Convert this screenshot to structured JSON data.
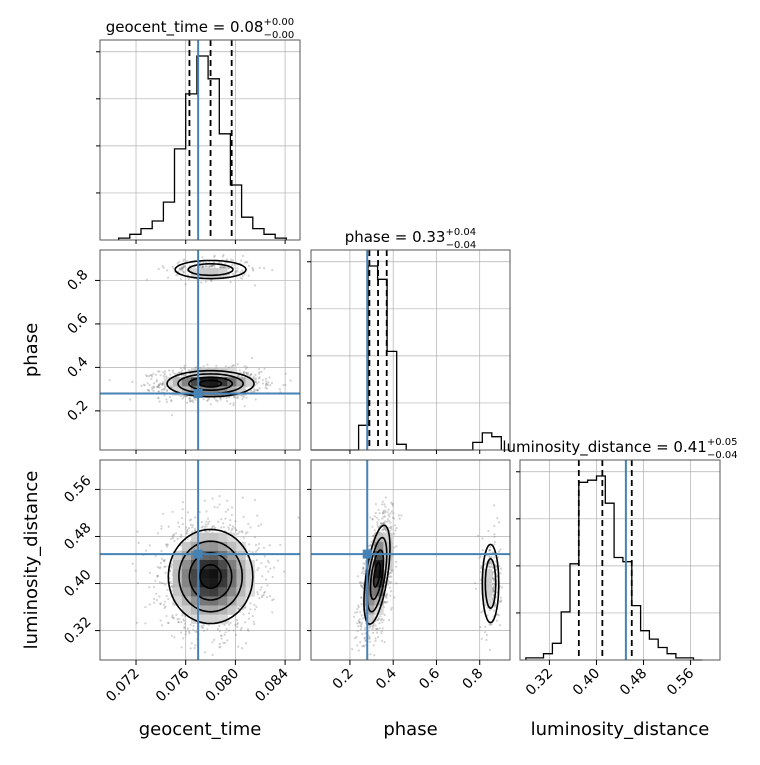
{
  "chart_data": {
    "type": "corner",
    "parameters": [
      "geocent_time",
      "phase",
      "luminosity_distance"
    ],
    "truth": {
      "geocent_time": 0.077,
      "phase": 0.28,
      "luminosity_distance": 0.45
    },
    "colors": {
      "truth": "#4682b4",
      "hist": "#000000",
      "grid": "#b0b0b0",
      "points": "#808080"
    },
    "diagonal": [
      {
        "param": "geocent_time",
        "title": "geocent_time = 0.08",
        "title_sup": "+0.00",
        "title_sub": "−0.00",
        "xlim": [
          0.0691,
          0.0852
        ],
        "quantiles": [
          0.0763,
          0.078,
          0.0797
        ],
        "bin_edges": [
          0.0706,
          0.0715,
          0.0724,
          0.0733,
          0.0742,
          0.0751,
          0.076,
          0.0769,
          0.0778,
          0.0787,
          0.0796,
          0.0805,
          0.0814,
          0.0823,
          0.0832,
          0.0841
        ],
        "counts": [
          0.01,
          0.03,
          0.06,
          0.1,
          0.2,
          0.48,
          0.77,
          0.97,
          0.85,
          0.56,
          0.29,
          0.12,
          0.06,
          0.03,
          0.01
        ]
      },
      {
        "param": "phase",
        "title": "phase = 0.33",
        "title_sup": "+0.04",
        "title_sub": "−0.04",
        "xlim": [
          0.02,
          0.94
        ],
        "quantiles": [
          0.29,
          0.33,
          0.37
        ],
        "bin_edges": [
          0.02,
          0.064,
          0.108,
          0.152,
          0.196,
          0.24,
          0.284,
          0.328,
          0.372,
          0.416,
          0.46,
          0.504,
          0.548,
          0.592,
          0.636,
          0.68,
          0.724,
          0.768,
          0.812,
          0.856,
          0.9
        ],
        "counts": [
          0,
          0,
          0,
          0,
          0,
          0.13,
          0.97,
          0.9,
          0.52,
          0.03,
          0,
          0,
          0,
          0,
          0,
          0,
          0,
          0.04,
          0.09,
          0.07
        ]
      },
      {
        "param": "luminosity_distance",
        "title": "luminosity_distance = 0.41",
        "title_sup": "+0.05",
        "title_sub": "−0.04",
        "xlim": [
          0.27,
          0.61
        ],
        "quantiles": [
          0.37,
          0.41,
          0.46
        ],
        "bin_edges": [
          0.28,
          0.295,
          0.31,
          0.325,
          0.34,
          0.355,
          0.37,
          0.385,
          0.4,
          0.415,
          0.43,
          0.445,
          0.46,
          0.475,
          0.49,
          0.505,
          0.52,
          0.535,
          0.55,
          0.565,
          0.58
        ],
        "counts": [
          0.01,
          0.01,
          0.03,
          0.08,
          0.23,
          0.46,
          0.85,
          0.86,
          0.88,
          0.75,
          0.49,
          0.47,
          0.26,
          0.14,
          0.1,
          0.06,
          0.03,
          0.01,
          0.01,
          0.0
        ]
      }
    ],
    "ticks": {
      "geocent_time": [
        "0.072",
        "0.076",
        "0.080",
        "0.084"
      ],
      "phase": [
        "0.2",
        "0.4",
        "0.6",
        "0.8"
      ],
      "luminosity_distance": [
        "0.32",
        "0.40",
        "0.48",
        "0.56"
      ]
    },
    "axis_labels": {
      "geocent_time": "geocent_time",
      "phase": "phase",
      "luminosity_distance": "luminosity_distance"
    },
    "pairs": [
      {
        "x": "geocent_time",
        "y": "phase",
        "modes": [
          {
            "mx": 0.078,
            "my": 0.325,
            "sx": 0.00175,
            "sy": 0.03,
            "weight": 0.85,
            "rho": 0.0
          },
          {
            "mx": 0.078,
            "my": 0.85,
            "sx": 0.0015,
            "sy": 0.022,
            "weight": 0.15,
            "rho": 0.0
          }
        ]
      },
      {
        "x": "geocent_time",
        "y": "luminosity_distance",
        "modes": [
          {
            "mx": 0.078,
            "my": 0.412,
            "sx": 0.0017,
            "sy": 0.04,
            "weight": 1.0,
            "rho": 0.0
          }
        ]
      },
      {
        "x": "phase",
        "y": "luminosity_distance",
        "modes": [
          {
            "mx": 0.325,
            "my": 0.415,
            "sx": 0.03,
            "sy": 0.042,
            "weight": 0.85,
            "rho": 0.55
          },
          {
            "mx": 0.85,
            "my": 0.4,
            "sx": 0.02,
            "sy": 0.035,
            "weight": 0.15,
            "rho": 0.0
          }
        ]
      }
    ],
    "contour_levels_sigma": [
      0.5,
      1.0,
      1.5,
      2.0
    ],
    "tick_values": {
      "geocent_time": [
        0.072,
        0.076,
        0.08,
        0.084
      ],
      "phase": [
        0.2,
        0.4,
        0.6,
        0.8
      ],
      "luminosity_distance": [
        0.32,
        0.4,
        0.48,
        0.56
      ]
    },
    "ranges": {
      "geocent_time": [
        0.0691,
        0.0852
      ],
      "phase": [
        0.02,
        0.94
      ],
      "luminosity_distance": [
        0.27,
        0.61
      ]
    },
    "grid": true
  }
}
